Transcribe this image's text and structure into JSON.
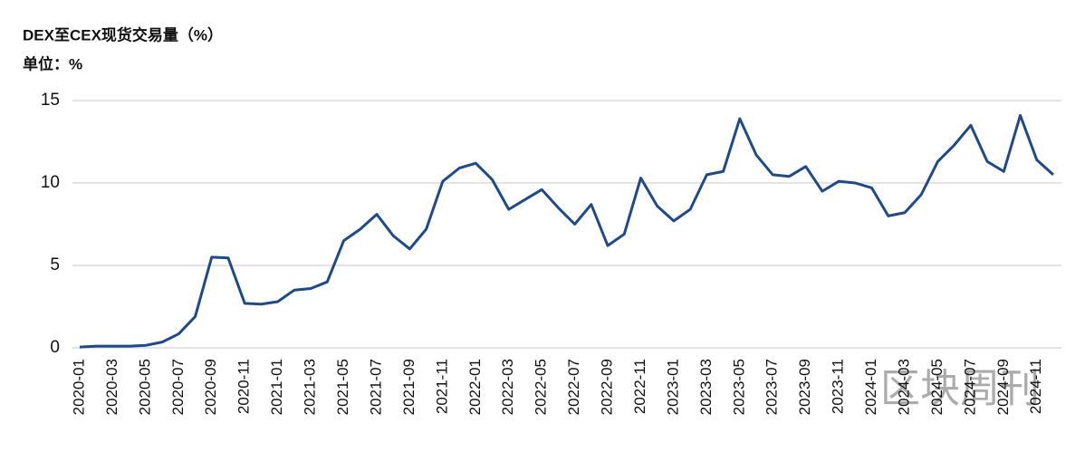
{
  "chart_data": {
    "type": "line",
    "title": "DEX至CEX现货交易量（%）",
    "subtitle": "单位：%",
    "watermark": "区块周刊",
    "categories": [
      "2020-01",
      null,
      "2020-03",
      null,
      "2020-05",
      null,
      "2020-07",
      null,
      "2020-09",
      null,
      "2020-11",
      null,
      "2021-01",
      null,
      "2021-03",
      null,
      "2021-05",
      null,
      "2021-07",
      null,
      "2021-09",
      null,
      "2021-11",
      null,
      "2022-01",
      null,
      "2022-03",
      null,
      "2022-05",
      null,
      "2022-07",
      null,
      "2022-09",
      null,
      "2022-11",
      null,
      "2023-01",
      null,
      "2023-03",
      null,
      "2023-05",
      null,
      "2023-07",
      null,
      "2023-09",
      null,
      "2023-11",
      null,
      "2024-01",
      null,
      "2024-03",
      null,
      "2024-05",
      null,
      "2024-07",
      null,
      "2024-09",
      null,
      "2024-11",
      null
    ],
    "series": [
      {
        "color": "#1f4a8a",
        "values": [
          0.05,
          0.1,
          0.1,
          0.1,
          0.15,
          0.35,
          0.85,
          1.9,
          5.5,
          5.45,
          2.7,
          2.65,
          2.8,
          3.5,
          3.6,
          4.0,
          6.5,
          7.2,
          8.1,
          6.8,
          6.0,
          7.2,
          10.1,
          10.9,
          11.2,
          10.2,
          8.4,
          9.0,
          9.6,
          8.5,
          7.5,
          8.7,
          6.2,
          6.9,
          10.3,
          8.6,
          7.7,
          8.4,
          10.5,
          10.7,
          13.9,
          11.7,
          10.5,
          10.4,
          11.0,
          9.5,
          10.1,
          10.0,
          9.7,
          8.0,
          8.2,
          9.3,
          11.3,
          12.3,
          13.5,
          11.3,
          10.7,
          14.1,
          11.4,
          10.5
        ]
      }
    ],
    "ylim": [
      0,
      15
    ],
    "yticks": [
      0,
      5,
      10,
      15
    ],
    "grid": true
  }
}
